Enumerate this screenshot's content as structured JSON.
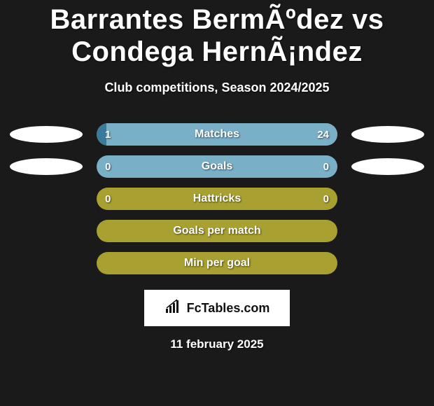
{
  "title": "Barrantes BermÃºdez vs Condega HernÃ¡ndez",
  "subtitle": "Club competitions, Season 2024/2025",
  "colors": {
    "bar_empty": "#a8a030",
    "left_segment": "#3a7a9a",
    "right_segment": "#79b0c8",
    "goals_bar": "#79b0c8",
    "pill": "#ffffff",
    "background": "#1a1a1a",
    "logo_bg": "#ffffff"
  },
  "stats": [
    {
      "label": "Matches",
      "left_value": "1",
      "right_value": "24",
      "left_pct": 4,
      "right_pct": 96,
      "show_pills": true,
      "left_color": "#3a7a9a",
      "right_color": "#79b0c8",
      "empty_color": "#a8a030"
    },
    {
      "label": "Goals",
      "left_value": "0",
      "right_value": "0",
      "left_pct": 0,
      "right_pct": 0,
      "show_pills": true,
      "full_fill": true,
      "fill_color": "#79b0c8",
      "empty_color": "#a8a030"
    },
    {
      "label": "Hattricks",
      "left_value": "0",
      "right_value": "0",
      "left_pct": 0,
      "right_pct": 0,
      "show_pills": false,
      "empty_color": "#a8a030"
    },
    {
      "label": "Goals per match",
      "left_value": "",
      "right_value": "",
      "left_pct": 0,
      "right_pct": 0,
      "show_pills": false,
      "empty_color": "#a8a030"
    },
    {
      "label": "Min per goal",
      "left_value": "",
      "right_value": "",
      "left_pct": 0,
      "right_pct": 0,
      "show_pills": false,
      "empty_color": "#a8a030"
    }
  ],
  "logo_text": "FcTables.com",
  "date": "11 february 2025"
}
